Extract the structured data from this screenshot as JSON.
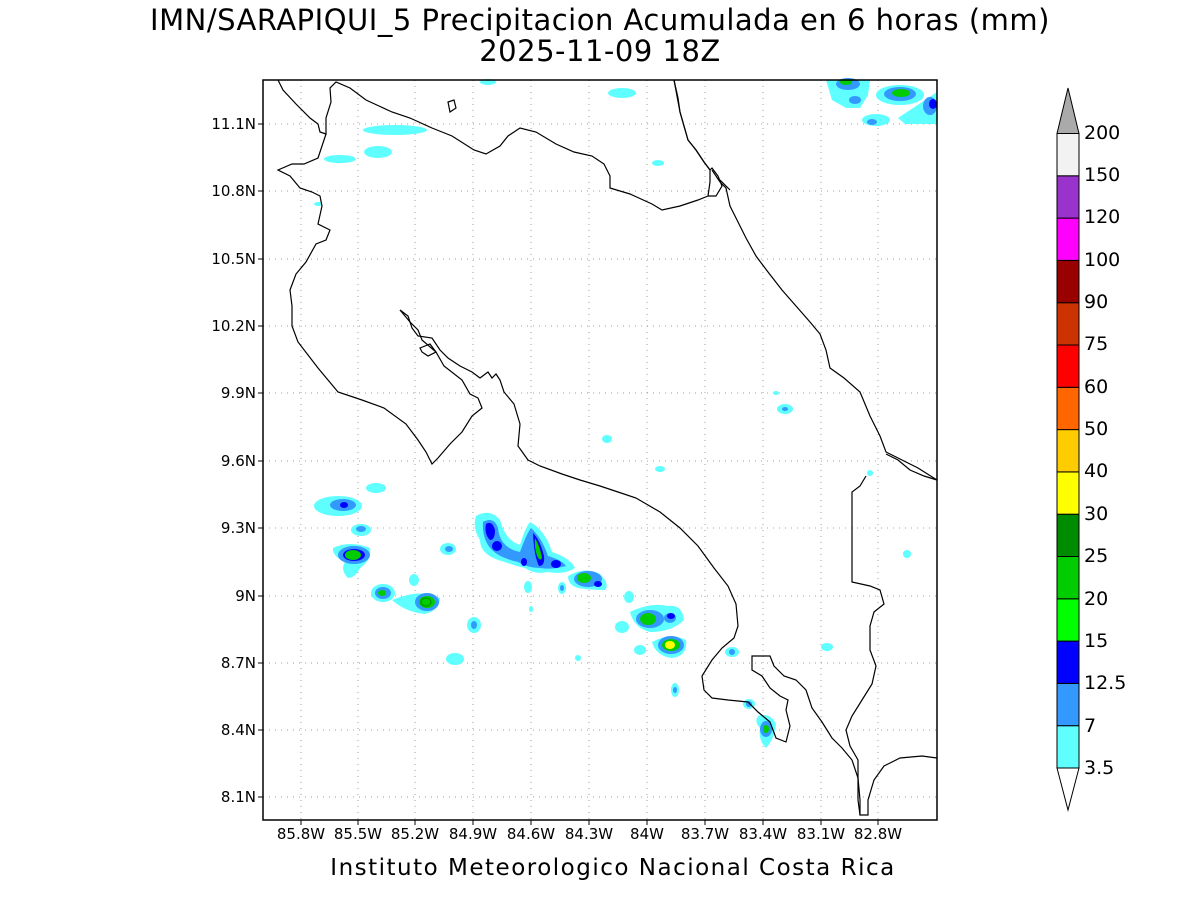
{
  "title_line1": "IMN/SARAPIQUI_5 Precipitacion Acumulada en 6 horas (mm)",
  "title_line2": "2025-11-09 18Z",
  "credit": "Instituto Meteorologico Nacional Costa Rica",
  "lat_labels": [
    "11.1N",
    "10.8N",
    "10.5N",
    "10.2N",
    "9.9N",
    "9.6N",
    "9.3N",
    "9N",
    "8.7N",
    "8.4N",
    "8.1N"
  ],
  "lon_labels": [
    "85.8W",
    "85.5W",
    "85.2W",
    "84.9W",
    "84.6W",
    "84.3W",
    "84W",
    "83.7W",
    "83.4W",
    "83.1W",
    "82.8W"
  ],
  "colorbar": {
    "labels": [
      "3.5",
      "7",
      "12.5",
      "15",
      "20",
      "25",
      "30",
      "40",
      "50",
      "60",
      "75",
      "90",
      "100",
      "120",
      "150",
      "200"
    ],
    "colors": [
      "#ffffff",
      "#5fffff",
      "#3399ff",
      "#0000ff",
      "#00ff00",
      "#00cc00",
      "#008c00",
      "#ffff00",
      "#ffcc00",
      "#ff6600",
      "#ff0000",
      "#cc3300",
      "#990000",
      "#ff00ff",
      "#9933cc",
      "#f2f2f2",
      "#aaaaaa"
    ]
  }
}
